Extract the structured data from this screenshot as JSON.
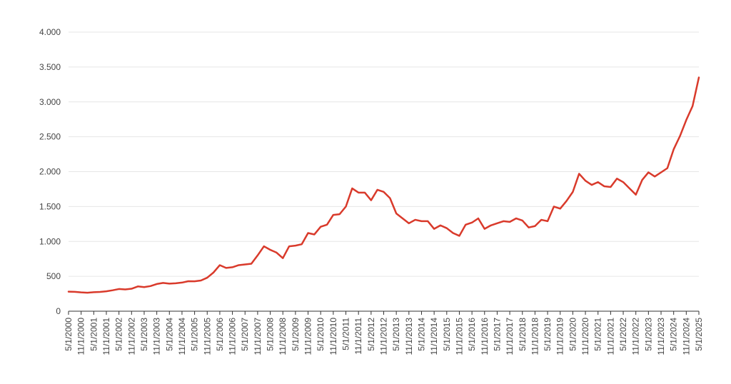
{
  "chart_data": {
    "type": "line",
    "title": "",
    "xlabel": "",
    "ylabel": "",
    "ylim": [
      0,
      4000
    ],
    "y_ticks": [
      0,
      500,
      1000,
      1500,
      2000,
      2500,
      3000,
      3500,
      4000
    ],
    "y_tick_labels": [
      "0",
      "500",
      "1.000",
      "1.500",
      "2.000",
      "2.500",
      "3.000",
      "3.500",
      "4.000"
    ],
    "x_tick_labels": [
      "5/1/2000",
      "11/1/2000",
      "5/1/2001",
      "11/1/2001",
      "5/1/2002",
      "11/1/2002",
      "5/1/2003",
      "11/1/2003",
      "5/1/2004",
      "11/1/2004",
      "5/1/2005",
      "11/1/2005",
      "5/1/2006",
      "11/1/2006",
      "5/1/2007",
      "11/1/2007",
      "5/1/2008",
      "11/1/2008",
      "5/1/2009",
      "11/1/2009",
      "5/1/2010",
      "11/1/2010",
      "5/1/2011",
      "11/1/2011",
      "5/1/2012",
      "11/1/2012",
      "5/1/2013",
      "11/1/2013",
      "5/1/2014",
      "11/1/2014",
      "5/1/2015",
      "11/1/2015",
      "5/1/2016",
      "11/1/2016",
      "5/1/2017",
      "11/1/2017",
      "5/1/2018",
      "11/1/2018",
      "5/1/2019",
      "11/1/2019",
      "5/1/2020",
      "11/1/2020",
      "5/1/2021",
      "11/1/2021",
      "5/1/2022",
      "11/1/2022",
      "5/1/2023",
      "11/1/2023",
      "5/1/2024",
      "11/1/2024",
      "5/1/2025"
    ],
    "grid": true,
    "legend": "none",
    "series": [
      {
        "color": "#d93a2b",
        "points": [
          [
            "5/1/2000",
            280
          ],
          [
            "8/1/2000",
            278
          ],
          [
            "11/1/2000",
            270
          ],
          [
            "2/1/2001",
            265
          ],
          [
            "5/1/2001",
            272
          ],
          [
            "8/1/2001",
            276
          ],
          [
            "11/1/2001",
            285
          ],
          [
            "2/1/2002",
            300
          ],
          [
            "5/1/2002",
            318
          ],
          [
            "8/1/2002",
            312
          ],
          [
            "11/1/2002",
            322
          ],
          [
            "2/1/2003",
            355
          ],
          [
            "5/1/2003",
            345
          ],
          [
            "8/1/2003",
            360
          ],
          [
            "11/1/2003",
            390
          ],
          [
            "2/1/2004",
            405
          ],
          [
            "5/1/2004",
            395
          ],
          [
            "8/1/2004",
            400
          ],
          [
            "11/1/2004",
            410
          ],
          [
            "2/1/2005",
            430
          ],
          [
            "5/1/2005",
            428
          ],
          [
            "8/1/2005",
            440
          ],
          [
            "11/1/2005",
            480
          ],
          [
            "2/1/2006",
            555
          ],
          [
            "5/1/2006",
            660
          ],
          [
            "8/1/2006",
            620
          ],
          [
            "11/1/2006",
            630
          ],
          [
            "2/1/2007",
            660
          ],
          [
            "5/1/2007",
            670
          ],
          [
            "8/1/2007",
            680
          ],
          [
            "11/1/2007",
            800
          ],
          [
            "2/1/2008",
            930
          ],
          [
            "5/1/2008",
            880
          ],
          [
            "8/1/2008",
            840
          ],
          [
            "11/1/2008",
            760
          ],
          [
            "2/1/2009",
            930
          ],
          [
            "5/1/2009",
            940
          ],
          [
            "8/1/2009",
            960
          ],
          [
            "11/1/2009",
            1120
          ],
          [
            "2/1/2010",
            1100
          ],
          [
            "5/1/2010",
            1210
          ],
          [
            "8/1/2010",
            1240
          ],
          [
            "11/1/2010",
            1380
          ],
          [
            "2/1/2011",
            1390
          ],
          [
            "5/1/2011",
            1500
          ],
          [
            "8/1/2011",
            1760
          ],
          [
            "11/1/2011",
            1700
          ],
          [
            "2/1/2012",
            1700
          ],
          [
            "5/1/2012",
            1590
          ],
          [
            "8/1/2012",
            1740
          ],
          [
            "11/1/2012",
            1710
          ],
          [
            "2/1/2013",
            1620
          ],
          [
            "5/1/2013",
            1400
          ],
          [
            "8/1/2013",
            1330
          ],
          [
            "11/1/2013",
            1260
          ],
          [
            "2/1/2014",
            1310
          ],
          [
            "5/1/2014",
            1290
          ],
          [
            "8/1/2014",
            1290
          ],
          [
            "11/1/2014",
            1180
          ],
          [
            "2/1/2015",
            1230
          ],
          [
            "5/1/2015",
            1190
          ],
          [
            "8/1/2015",
            1120
          ],
          [
            "11/1/2015",
            1080
          ],
          [
            "2/1/2016",
            1240
          ],
          [
            "5/1/2016",
            1270
          ],
          [
            "8/1/2016",
            1330
          ],
          [
            "11/1/2016",
            1180
          ],
          [
            "2/1/2017",
            1230
          ],
          [
            "5/1/2017",
            1260
          ],
          [
            "8/1/2017",
            1290
          ],
          [
            "11/1/2017",
            1280
          ],
          [
            "2/1/2018",
            1330
          ],
          [
            "5/1/2018",
            1300
          ],
          [
            "8/1/2018",
            1200
          ],
          [
            "11/1/2018",
            1220
          ],
          [
            "2/1/2019",
            1310
          ],
          [
            "5/1/2019",
            1290
          ],
          [
            "8/1/2019",
            1500
          ],
          [
            "11/1/2019",
            1470
          ],
          [
            "2/1/2020",
            1580
          ],
          [
            "5/1/2020",
            1710
          ],
          [
            "8/1/2020",
            1970
          ],
          [
            "11/1/2020",
            1870
          ],
          [
            "2/1/2021",
            1810
          ],
          [
            "5/1/2021",
            1850
          ],
          [
            "8/1/2021",
            1790
          ],
          [
            "11/1/2021",
            1780
          ],
          [
            "2/1/2022",
            1900
          ],
          [
            "5/1/2022",
            1850
          ],
          [
            "8/1/2022",
            1760
          ],
          [
            "11/1/2022",
            1670
          ],
          [
            "2/1/2023",
            1880
          ],
          [
            "5/1/2023",
            1990
          ],
          [
            "8/1/2023",
            1930
          ],
          [
            "11/1/2023",
            1990
          ],
          [
            "2/1/2024",
            2050
          ],
          [
            "5/1/2024",
            2320
          ],
          [
            "8/1/2024",
            2510
          ],
          [
            "11/1/2024",
            2740
          ],
          [
            "2/1/2025",
            2940
          ],
          [
            "5/1/2025",
            3350
          ]
        ]
      }
    ]
  }
}
